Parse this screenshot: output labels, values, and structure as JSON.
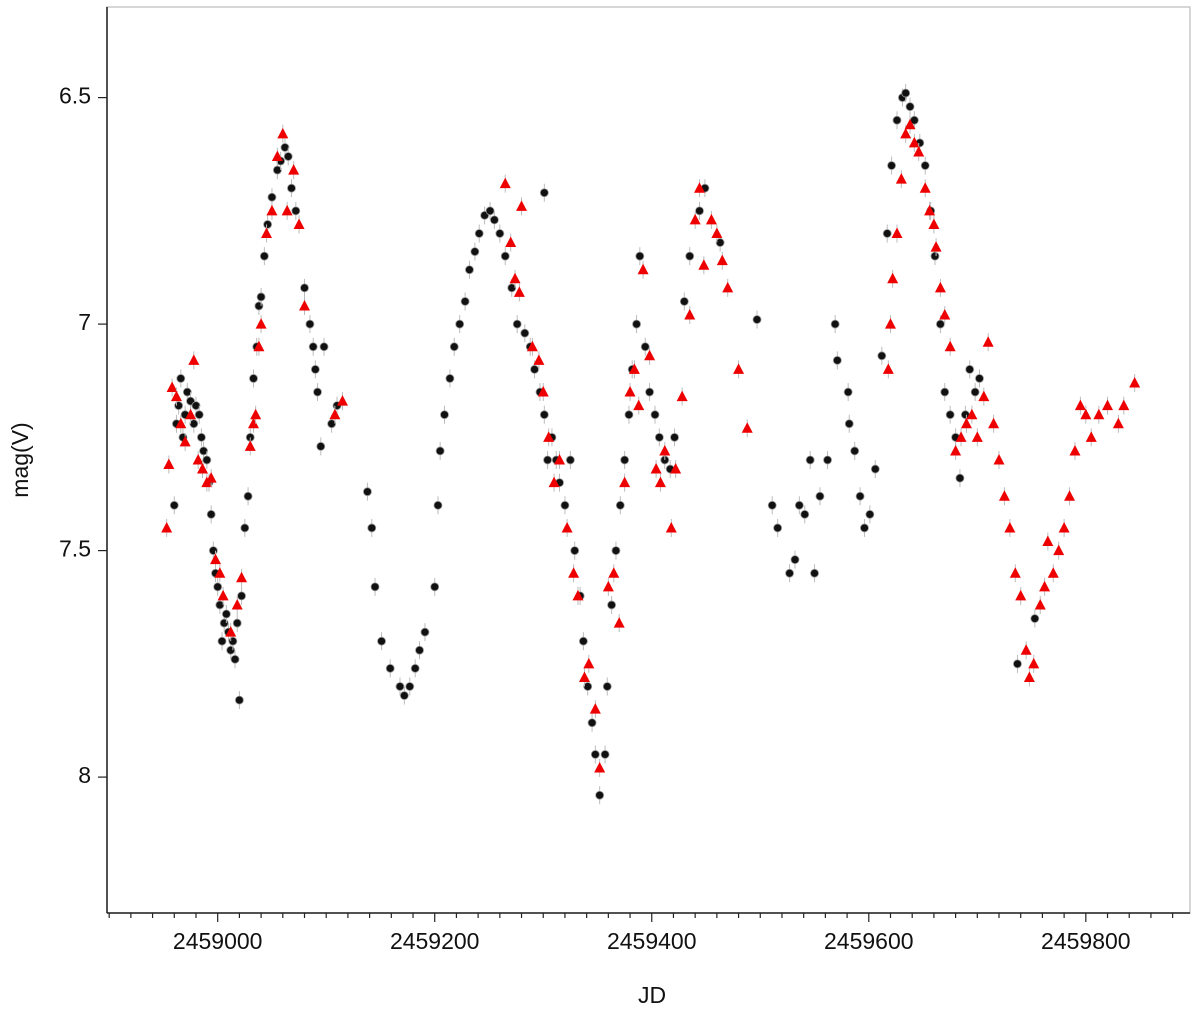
{
  "chart_data": {
    "type": "scatter",
    "xlabel": "JD",
    "ylabel": "mag(V)",
    "xlim": [
      2458898,
      2459896
    ],
    "ylim": [
      6.3,
      8.3
    ],
    "y_inverted": true,
    "xticks": [
      2459000,
      2459200,
      2459400,
      2459600,
      2459800
    ],
    "xminorticks": [
      2458900,
      2458920,
      2458940,
      2458960,
      2458980,
      2459020,
      2459040,
      2459060,
      2459080,
      2459100,
      2459120,
      2459140,
      2459160,
      2459180,
      2459220,
      2459240,
      2459260,
      2459280,
      2459300,
      2459320,
      2459340,
      2459360,
      2459380,
      2459420,
      2459440,
      2459460,
      2459480,
      2459500,
      2459520,
      2459540,
      2459560,
      2459580,
      2459620,
      2459640,
      2459660,
      2459680,
      2459700,
      2459720,
      2459740,
      2459760,
      2459780,
      2459820,
      2459840,
      2459860,
      2459880
    ],
    "yticks": [
      6.5,
      7,
      7.5,
      8
    ],
    "series": [
      {
        "color": "#111111",
        "marker": "circle",
        "x": [
          2458960,
          2458962,
          2458964,
          2458966,
          2458968,
          2458970,
          2458972,
          2458975,
          2458978,
          2458980,
          2458983,
          2458985,
          2458987,
          2458990,
          2458992,
          2458994,
          2458996,
          2458998,
          2459000,
          2459002,
          2459004,
          2459006,
          2459008,
          2459010,
          2459012,
          2459014,
          2459016,
          2459018,
          2459020,
          2459022,
          2459025,
          2459028,
          2459030,
          2459033,
          2459036,
          2459038,
          2459040,
          2459043,
          2459046,
          2459050,
          2459055,
          2459058,
          2459062,
          2459065,
          2459068,
          2459072,
          2459080,
          2459085,
          2459088,
          2459090,
          2459092,
          2459095,
          2459098,
          2459105,
          2459110,
          2459138,
          2459142,
          2459145,
          2459151,
          2459159,
          2459168,
          2459172,
          2459177,
          2459182,
          2459186,
          2459191,
          2459200,
          2459203,
          2459205,
          2459209,
          2459214,
          2459218,
          2459223,
          2459228,
          2459232,
          2459237,
          2459241,
          2459246,
          2459251,
          2459255,
          2459260,
          2459265,
          2459271,
          2459276,
          2459283,
          2459288,
          2459292,
          2459297,
          2459301,
          2459304,
          2459308,
          2459312,
          2459315,
          2459320,
          2459325,
          2459301,
          2459329,
          2459334,
          2459337,
          2459341,
          2459345,
          2459348,
          2459352,
          2459357,
          2459359,
          2459363,
          2459367,
          2459371,
          2459375,
          2459379,
          2459382,
          2459386,
          2459389,
          2459394,
          2459398,
          2459403,
          2459407,
          2459412,
          2459417,
          2459421,
          2459430,
          2459435,
          2459444,
          2459449,
          2459463,
          2459497,
          2459511,
          2459516,
          2459527,
          2459532,
          2459536,
          2459541,
          2459546,
          2459550,
          2459555,
          2459562,
          2459569,
          2459571,
          2459581,
          2459582,
          2459587,
          2459592,
          2459596,
          2459601,
          2459606,
          2459612,
          2459617,
          2459621,
          2459626,
          2459631,
          2459634,
          2459638,
          2459642,
          2459647,
          2459652,
          2459657,
          2459661,
          2459666,
          2459670,
          2459675,
          2459680,
          2459684,
          2459689,
          2459693,
          2459698,
          2459702,
          2459737,
          2459753
        ],
        "values": [
          7.4,
          7.22,
          7.18,
          7.12,
          7.25,
          7.2,
          7.15,
          7.17,
          7.22,
          7.18,
          7.2,
          7.25,
          7.28,
          7.3,
          7.35,
          7.42,
          7.5,
          7.55,
          7.58,
          7.62,
          7.7,
          7.66,
          7.64,
          7.68,
          7.72,
          7.7,
          7.74,
          7.66,
          7.83,
          7.6,
          7.45,
          7.38,
          7.25,
          7.12,
          7.05,
          6.96,
          6.94,
          6.85,
          6.78,
          6.72,
          6.66,
          6.64,
          6.61,
          6.63,
          6.7,
          6.75,
          6.92,
          7.0,
          7.05,
          7.1,
          7.15,
          7.27,
          7.05,
          7.22,
          7.18,
          7.37,
          7.45,
          7.58,
          7.7,
          7.76,
          7.8,
          7.82,
          7.8,
          7.76,
          7.72,
          7.68,
          7.58,
          7.4,
          7.28,
          7.2,
          7.12,
          7.05,
          7.0,
          6.95,
          6.88,
          6.84,
          6.8,
          6.76,
          6.75,
          6.77,
          6.8,
          6.85,
          6.92,
          7.0,
          7.02,
          7.05,
          7.1,
          7.15,
          7.2,
          7.3,
          7.25,
          7.3,
          7.35,
          7.4,
          7.3,
          6.71,
          7.5,
          7.6,
          7.7,
          7.8,
          7.88,
          7.95,
          8.04,
          7.95,
          7.8,
          7.62,
          7.5,
          7.4,
          7.3,
          7.2,
          7.1,
          7.0,
          6.85,
          7.05,
          7.15,
          7.2,
          7.25,
          7.3,
          7.32,
          7.25,
          6.95,
          6.85,
          6.75,
          6.7,
          6.82,
          6.99,
          7.4,
          7.45,
          7.55,
          7.52,
          7.4,
          7.42,
          7.3,
          7.55,
          7.38,
          7.3,
          7.0,
          7.08,
          7.15,
          7.22,
          7.28,
          7.38,
          7.45,
          7.42,
          7.32,
          7.07,
          6.8,
          6.65,
          6.55,
          6.5,
          6.49,
          6.52,
          6.55,
          6.6,
          6.65,
          6.75,
          6.85,
          7.0,
          7.15,
          7.2,
          7.25,
          7.34,
          7.2,
          7.1,
          7.15,
          7.12,
          7.75,
          7.65
        ]
      },
      {
        "color": "#ee0000",
        "marker": "triangle",
        "x": [
          2458953,
          2458955,
          2458958,
          2458962,
          2458966,
          2458970,
          2458975,
          2458978,
          2458982,
          2458986,
          2458990,
          2458994,
          2458998,
          2459002,
          2459005,
          2459012,
          2459018,
          2459022,
          2459030,
          2459033,
          2459035,
          2459038,
          2459040,
          2459045,
          2459050,
          2459055,
          2459060,
          2459064,
          2459070,
          2459075,
          2459080,
          2459108,
          2459115,
          2459265,
          2459270,
          2459274,
          2459278,
          2459280,
          2459290,
          2459296,
          2459300,
          2459305,
          2459310,
          2459315,
          2459322,
          2459328,
          2459332,
          2459338,
          2459342,
          2459348,
          2459352,
          2459360,
          2459365,
          2459370,
          2459375,
          2459380,
          2459384,
          2459388,
          2459392,
          2459398,
          2459404,
          2459408,
          2459412,
          2459418,
          2459422,
          2459428,
          2459435,
          2459440,
          2459444,
          2459448,
          2459455,
          2459460,
          2459465,
          2459470,
          2459480,
          2459488,
          2459618,
          2459620,
          2459622,
          2459626,
          2459630,
          2459634,
          2459638,
          2459642,
          2459646,
          2459652,
          2459656,
          2459660,
          2459662,
          2459666,
          2459670,
          2459675,
          2459680,
          2459685,
          2459690,
          2459695,
          2459700,
          2459706,
          2459710,
          2459715,
          2459720,
          2459725,
          2459730,
          2459735,
          2459740,
          2459745,
          2459748,
          2459752,
          2459758,
          2459762,
          2459765,
          2459770,
          2459775,
          2459780,
          2459785,
          2459790,
          2459795,
          2459800,
          2459805,
          2459812,
          2459820,
          2459830,
          2459835,
          2459845
        ],
        "values": [
          7.45,
          7.31,
          7.14,
          7.16,
          7.22,
          7.26,
          7.2,
          7.08,
          7.3,
          7.32,
          7.35,
          7.34,
          7.52,
          7.55,
          7.6,
          7.68,
          7.62,
          7.56,
          7.27,
          7.22,
          7.2,
          7.05,
          7.0,
          6.8,
          6.75,
          6.63,
          6.58,
          6.75,
          6.66,
          6.78,
          6.96,
          7.2,
          7.17,
          6.69,
          6.82,
          6.9,
          6.93,
          6.74,
          7.05,
          7.08,
          7.15,
          7.25,
          7.35,
          7.3,
          7.45,
          7.55,
          7.6,
          7.78,
          7.75,
          7.85,
          7.98,
          7.58,
          7.55,
          7.66,
          7.35,
          7.15,
          7.1,
          7.18,
          6.88,
          7.07,
          7.32,
          7.35,
          7.28,
          7.45,
          7.32,
          7.16,
          6.98,
          6.77,
          6.7,
          6.87,
          6.77,
          6.8,
          6.86,
          6.92,
          7.1,
          7.23,
          7.1,
          7.0,
          6.9,
          6.8,
          6.68,
          6.58,
          6.56,
          6.6,
          6.62,
          6.7,
          6.75,
          6.78,
          6.83,
          6.92,
          6.98,
          7.05,
          7.28,
          7.25,
          7.22,
          7.2,
          7.25,
          7.16,
          7.04,
          7.22,
          7.3,
          7.38,
          7.45,
          7.55,
          7.6,
          7.72,
          7.78,
          7.75,
          7.62,
          7.58,
          7.48,
          7.55,
          7.5,
          7.45,
          7.38,
          7.28,
          7.18,
          7.2,
          7.25,
          7.2,
          7.18,
          7.22,
          7.18,
          7.13
        ]
      }
    ]
  }
}
